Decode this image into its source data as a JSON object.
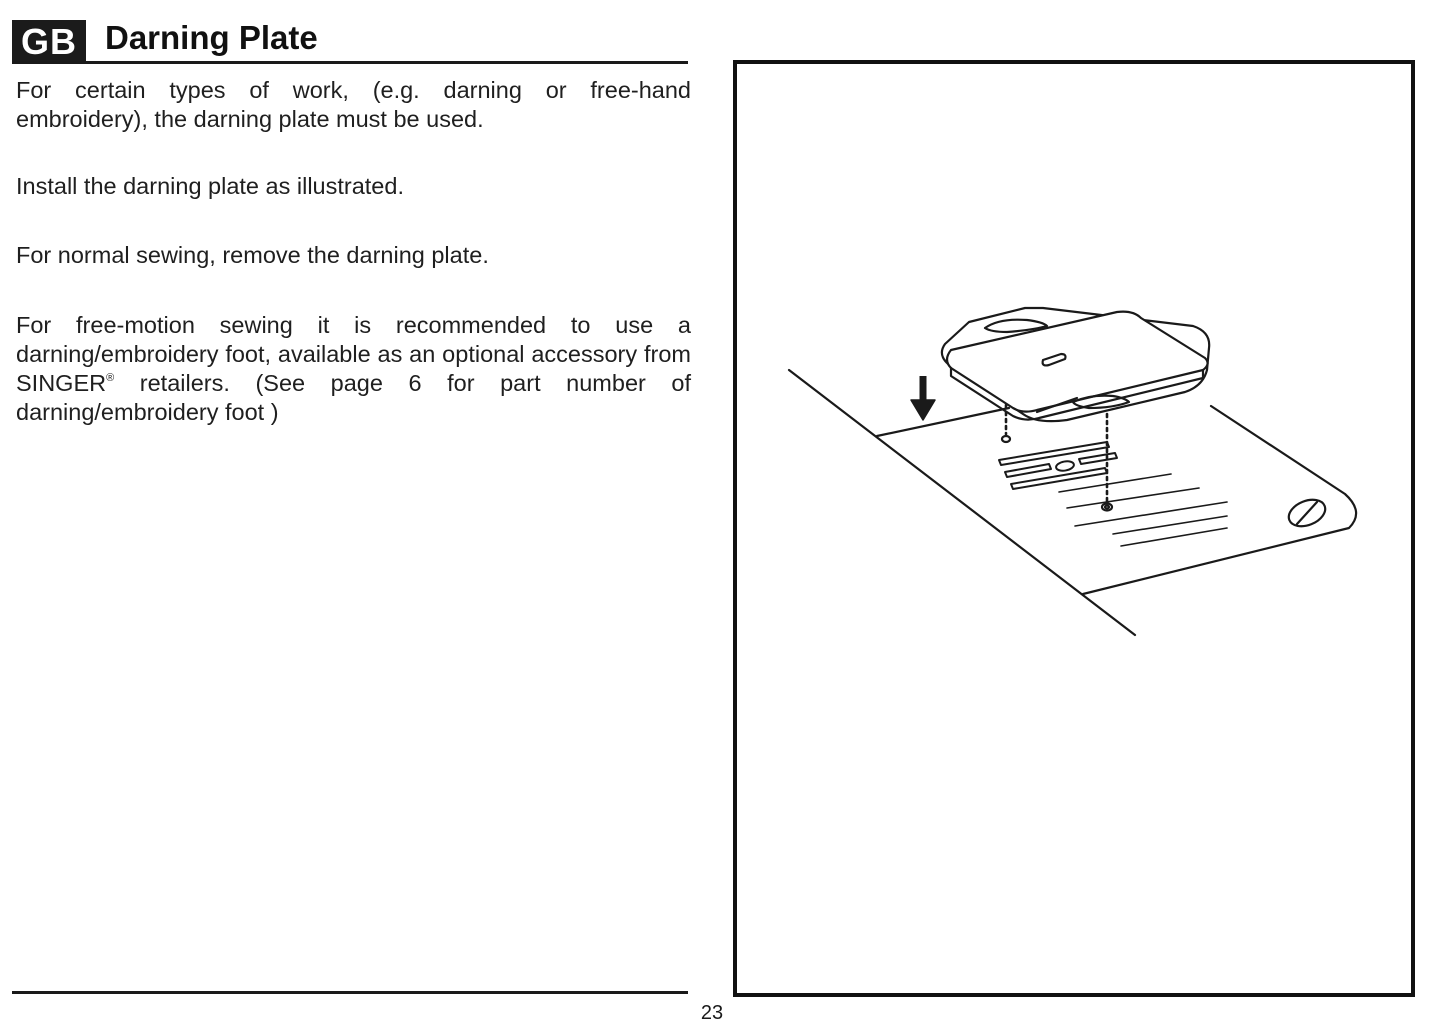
{
  "header": {
    "language_badge": "GB",
    "title": "Darning Plate"
  },
  "content": {
    "paragraphs": [
      "For certain types of work, (e.g. darning or free-hand embroidery), the darning plate must be used.",
      "Install the darning plate as illustrated.",
      "For normal sewing, remove the darning plate."
    ],
    "last_paragraph": {
      "before_brand": "For free-motion sewing it is recommended to use a darning/embroidery foot, available as an optional accessory from SINGER",
      "registered_mark": "®",
      "after_brand": " retailers. (See page 6 for part number of darning/embroidery foot )"
    }
  },
  "figure": {
    "subject": "darning plate installation illustration",
    "icons": [
      "down-arrow-icon",
      "screw-icon"
    ]
  },
  "footer": {
    "page_number": "23"
  }
}
